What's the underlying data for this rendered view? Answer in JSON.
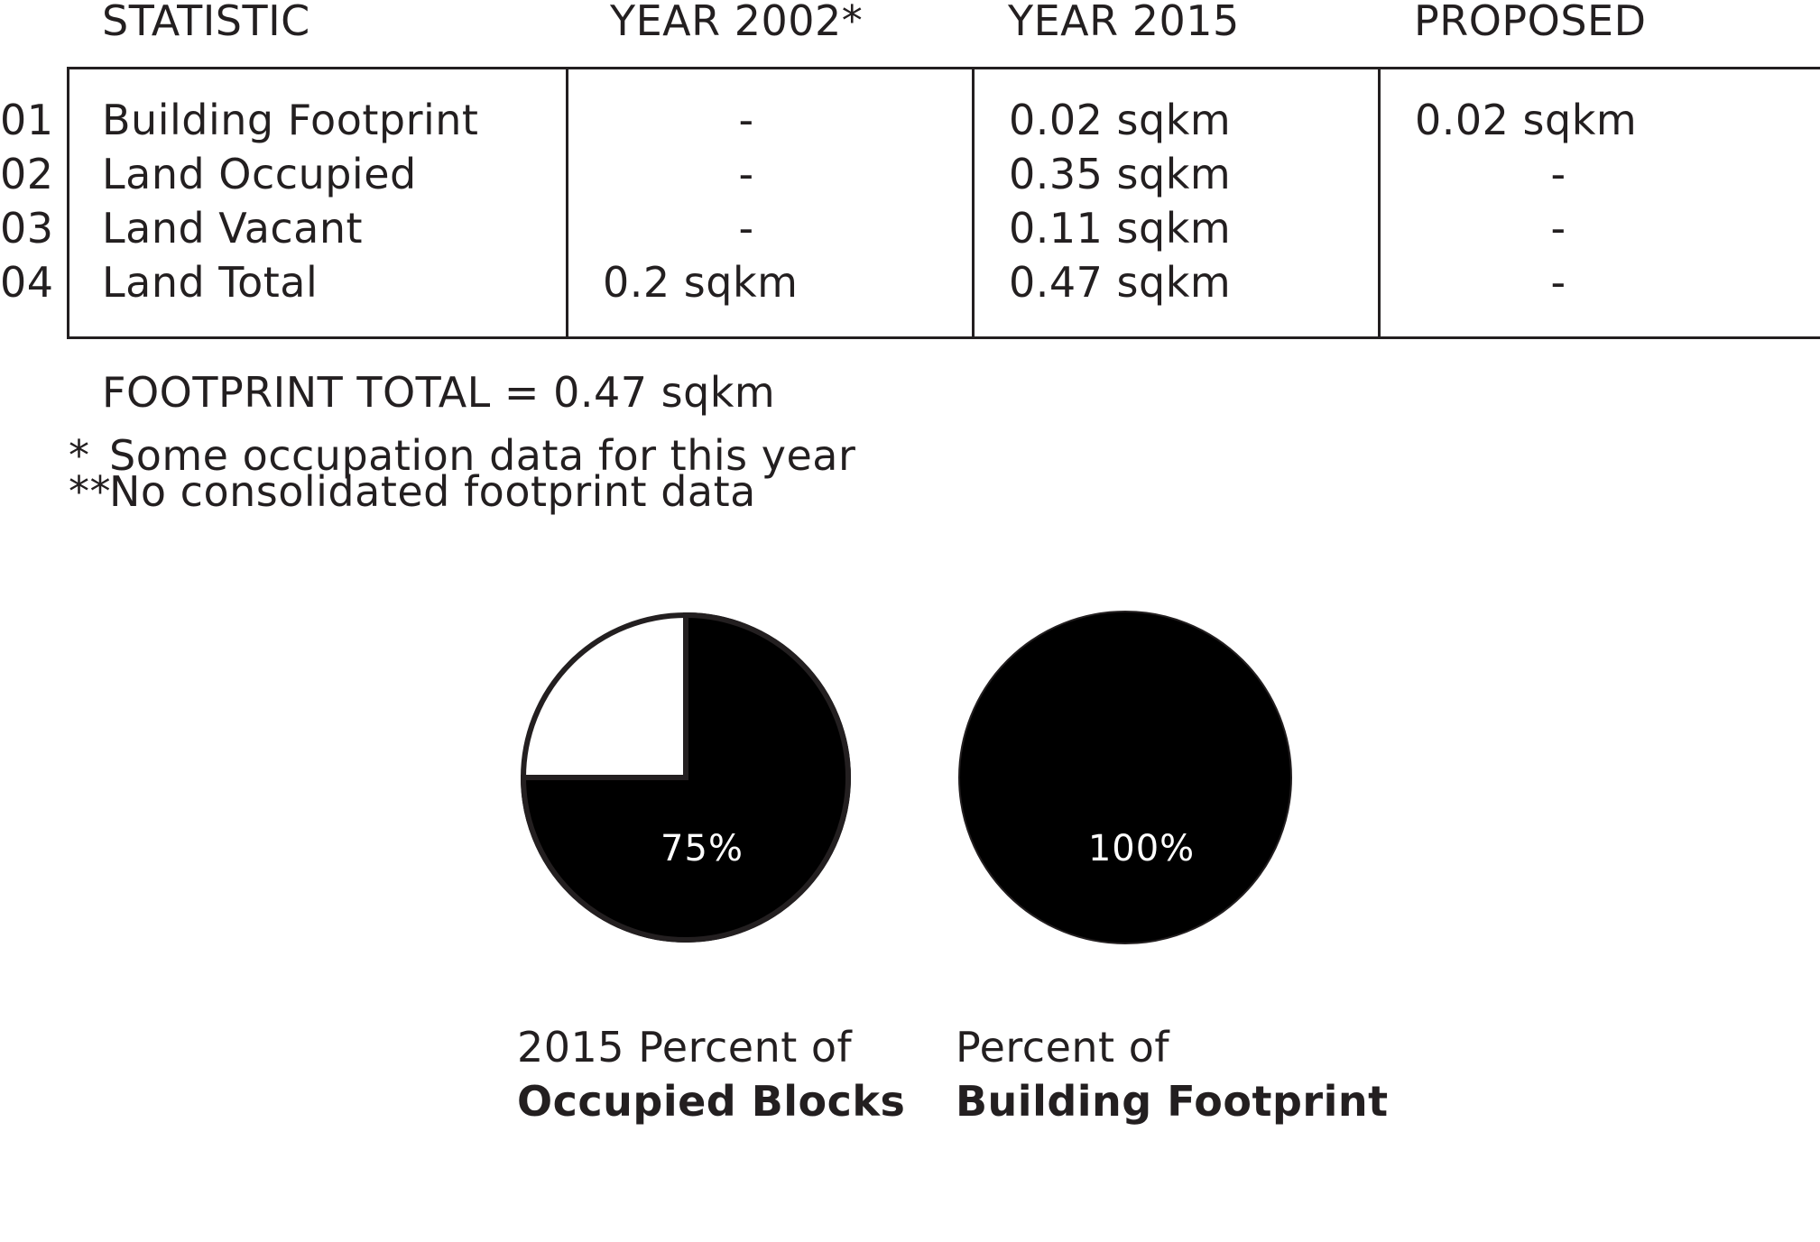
{
  "table": {
    "headers": [
      "STATISTIC",
      "YEAR 2002*",
      "YEAR 2015",
      "PROPOSED"
    ],
    "rows": [
      {
        "num": "01",
        "label": "Building Footprint",
        "y2002": "-",
        "y2015": "0.02 sqkm",
        "proposed": "0.02 sqkm"
      },
      {
        "num": "02",
        "label": "Land Occupied",
        "y2002": "-",
        "y2015": "0.35 sqkm",
        "proposed": "-"
      },
      {
        "num": "03",
        "label": "Land Vacant",
        "y2002": "-",
        "y2015": "0.11 sqkm",
        "proposed": "-"
      },
      {
        "num": "04",
        "label": "Land Total",
        "y2002": "0.2 sqkm",
        "y2015": "0.47 sqkm",
        "proposed": "-"
      }
    ]
  },
  "footprint_total": "FOOTPRINT TOTAL = 0.47 sqkm",
  "notes": {
    "n1_mark": "*",
    "n1_text": "Some occupation data for this year",
    "n2_mark": "**",
    "n2_text": "No consolidated footprint data"
  },
  "colors": {
    "ink": "#231f20",
    "fill": "#000000",
    "background": "#ffffff"
  },
  "chart_data": [
    {
      "type": "pie",
      "title_line1": "2015 Percent of",
      "title_line2": "Occupied Blocks",
      "value": 75,
      "label": "75%"
    },
    {
      "type": "pie",
      "title_line1": "Percent of",
      "title_line2": "Building Footprint",
      "value": 100,
      "label": "100%"
    }
  ]
}
